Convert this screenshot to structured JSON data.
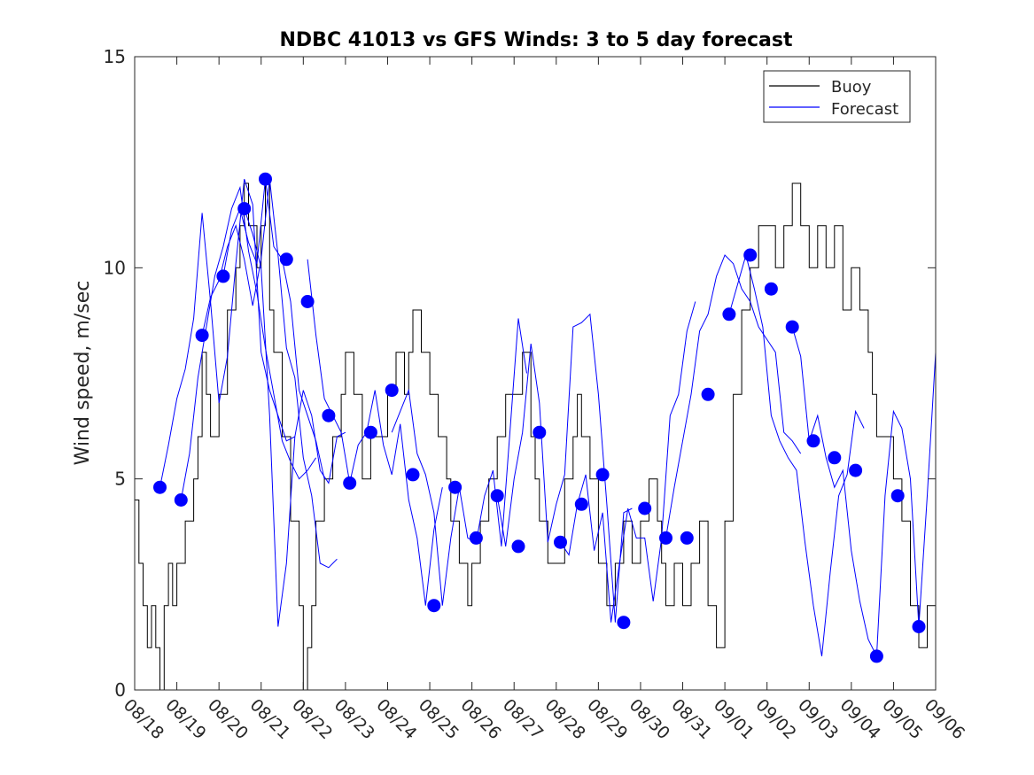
{
  "colors": {
    "buoy": "#000000",
    "forecast": "#0000ff",
    "axis": "#262626",
    "background": "#ffffff"
  },
  "chart_data": {
    "type": "line",
    "title": "NDBC 41013 vs GFS Winds: 3 to 5 day forecast",
    "xlabel": "",
    "ylabel": "Wind speed, m/sec",
    "xlim": [
      0,
      19
    ],
    "ylim": [
      0,
      15
    ],
    "grid": false,
    "legend_position": "top-right",
    "x_tick_labels": [
      "08/18",
      "08/19",
      "08/20",
      "08/21",
      "08/22",
      "08/23",
      "08/24",
      "08/25",
      "08/26",
      "08/27",
      "08/28",
      "08/29",
      "08/30",
      "08/31",
      "09/01",
      "09/02",
      "09/03",
      "09/04",
      "09/05",
      "09/06"
    ],
    "y_ticks": [
      0,
      5,
      10,
      15
    ],
    "legend": {
      "buoy_label": "Buoy",
      "forecast_label": "Forecast"
    },
    "buoy": {
      "name": "Buoy",
      "x": [
        0,
        0.1,
        0.2,
        0.3,
        0.4,
        0.5,
        0.6,
        0.7,
        0.8,
        0.9,
        1.0,
        1.2,
        1.4,
        1.5,
        1.6,
        1.7,
        1.8,
        2.0,
        2.2,
        2.4,
        2.5,
        2.6,
        2.7,
        2.9,
        3.0,
        3.1,
        3.2,
        3.3,
        3.5,
        3.7,
        3.9,
        4.0,
        4.1,
        4.2,
        4.3,
        4.5,
        4.7,
        4.9,
        5.0,
        5.2,
        5.4,
        5.6,
        5.8,
        6.0,
        6.2,
        6.4,
        6.5,
        6.6,
        6.8,
        7.0,
        7.2,
        7.4,
        7.5,
        7.7,
        7.9,
        8.0,
        8.2,
        8.4,
        8.6,
        8.8,
        9.0,
        9.2,
        9.4,
        9.5,
        9.6,
        9.8,
        10.0,
        10.2,
        10.4,
        10.5,
        10.6,
        10.8,
        11.0,
        11.2,
        11.4,
        11.6,
        11.8,
        12.0,
        12.2,
        12.4,
        12.5,
        12.6,
        12.8,
        13.0,
        13.2,
        13.4,
        13.6,
        13.8,
        14.0,
        14.2,
        14.4,
        14.6,
        14.8,
        15.0,
        15.2,
        15.4,
        15.6,
        15.8,
        16.0,
        16.2,
        16.4,
        16.6,
        16.8,
        17.0,
        17.2,
        17.4,
        17.5,
        17.6,
        17.8,
        18.0,
        18.2,
        18.4,
        18.6,
        18.8,
        19.0
      ],
      "values": [
        4.5,
        3,
        2,
        1,
        2,
        1,
        0,
        2,
        3,
        2,
        3,
        4,
        5,
        6,
        8,
        7,
        6,
        7,
        9,
        10,
        11,
        12,
        11,
        10,
        11,
        12,
        9,
        8,
        6,
        4,
        2,
        0,
        1,
        2,
        4,
        5,
        6,
        7,
        8,
        7,
        5,
        6,
        6,
        7,
        8,
        7,
        8,
        9,
        8,
        7,
        6,
        5,
        4,
        3,
        2,
        3,
        4,
        5,
        6,
        7,
        7,
        8,
        6,
        5,
        4,
        3,
        3,
        5,
        6,
        7,
        6,
        5,
        3,
        2,
        3,
        4,
        3,
        4,
        5,
        4,
        3,
        2,
        3,
        2,
        3,
        4,
        2,
        1,
        4,
        7,
        9,
        10,
        11,
        11,
        10,
        11,
        12,
        11,
        10,
        11,
        10,
        11,
        9,
        10,
        9,
        8,
        7,
        6,
        6,
        5,
        4,
        2,
        1,
        2,
        3
      ]
    },
    "forecast_series": [
      {
        "name": "Forecast",
        "x": [
          0.6,
          0.8,
          1.0,
          1.2,
          1.4,
          1.6,
          1.8,
          2.0,
          2.2,
          2.4,
          2.6,
          2.8,
          3.0,
          3.2,
          3.4,
          3.6,
          3.8
        ],
        "values": [
          4.8,
          5.8,
          6.9,
          7.6,
          8.8,
          11.3,
          9.2,
          6.8,
          7.9,
          10.1,
          12.1,
          11.5,
          8.0,
          7.1,
          6.5,
          5.9,
          6.0
        ]
      },
      {
        "name": "Forecast",
        "x": [
          1.1,
          1.3,
          1.5,
          1.7,
          1.9,
          2.1,
          2.3,
          2.5,
          2.7,
          2.9,
          3.1,
          3.3,
          3.5,
          3.7,
          3.9,
          4.1,
          4.3
        ],
        "values": [
          4.5,
          5.6,
          7.4,
          8.6,
          9.8,
          10.5,
          11.4,
          11.9,
          10.4,
          9.4,
          8.1,
          7.0,
          5.9,
          5.4,
          5.0,
          5.2,
          5.5
        ]
      },
      {
        "name": "Forecast",
        "x": [
          1.6,
          1.8,
          2.0,
          2.2,
          2.4,
          2.6,
          2.8,
          3.0,
          3.2,
          3.4,
          3.6,
          3.8,
          4.0,
          4.2,
          4.4,
          4.6,
          4.8
        ],
        "values": [
          8.4,
          9.3,
          9.7,
          10.5,
          11.0,
          10.2,
          9.1,
          10.2,
          12.1,
          10.3,
          8.1,
          7.4,
          5.5,
          4.6,
          3.0,
          2.9,
          3.1
        ]
      },
      {
        "name": "Forecast",
        "x": [
          2.1,
          2.3,
          2.5,
          2.7,
          2.9,
          3.1,
          3.3,
          3.5,
          3.7,
          3.9,
          4.1,
          4.3,
          4.5
        ],
        "values": [
          9.8,
          10.9,
          11.4,
          10.6,
          10.1,
          12.1,
          10.5,
          10.2,
          9.2,
          7.1,
          6.5,
          5.9,
          5.0
        ]
      },
      {
        "name": "Forecast",
        "x": [
          2.6,
          2.8,
          3.0,
          3.2,
          3.4,
          3.6,
          3.8,
          4.0,
          4.2,
          4.4,
          4.6,
          4.8,
          5.0
        ],
        "values": [
          11.4,
          10.8,
          10.0,
          6.5,
          1.5,
          3.0,
          6.0,
          7.1,
          6.5,
          5.2,
          4.9,
          6.0,
          6.1
        ]
      },
      {
        "name": "Forecast",
        "x": [
          4.1,
          4.3,
          4.5,
          4.7,
          4.9,
          5.1,
          5.3,
          5.5,
          5.7,
          5.9,
          6.1,
          6.3,
          6.5,
          6.7,
          6.9,
          7.1,
          7.3
        ],
        "values": [
          10.2,
          8.4,
          6.9,
          6.5,
          6.1,
          4.9,
          5.8,
          6.1,
          7.1,
          5.8,
          5.1,
          6.3,
          4.5,
          3.6,
          2.0,
          3.8,
          4.8
        ]
      },
      {
        "name": "Forecast",
        "x": [
          6.1,
          6.3,
          6.5,
          6.7,
          6.9,
          7.1,
          7.3,
          7.5,
          7.7,
          7.9,
          8.1,
          8.3,
          8.5,
          8.7,
          8.9,
          9.1,
          9.3
        ],
        "values": [
          6.1,
          6.6,
          7.1,
          5.6,
          5.1,
          4.2,
          2.0,
          3.6,
          4.8,
          3.6,
          3.5,
          4.6,
          5.2,
          3.4,
          6.1,
          8.8,
          7.5
        ]
      },
      {
        "name": "Forecast",
        "x": [
          8.6,
          8.8,
          9.0,
          9.2,
          9.4,
          9.6,
          9.8,
          10.0,
          10.2,
          10.4,
          10.6,
          10.8,
          11.0,
          11.2,
          11.4,
          11.6,
          11.8
        ],
        "values": [
          4.6,
          3.4,
          5.0,
          6.1,
          8.2,
          6.8,
          3.5,
          4.4,
          5.1,
          8.6,
          8.7,
          8.9,
          7.0,
          4.4,
          1.6,
          4.2,
          4.3
        ]
      },
      {
        "name": "Forecast",
        "x": [
          10.1,
          10.3,
          10.5,
          10.7,
          10.9,
          11.1,
          11.3,
          11.5,
          11.7,
          11.9,
          12.1,
          12.3,
          12.5,
          12.7,
          12.9,
          13.1,
          13.3
        ],
        "values": [
          3.5,
          3.2,
          4.4,
          5.1,
          3.3,
          4.2,
          1.6,
          3.0,
          4.3,
          3.6,
          3.6,
          2.1,
          3.6,
          6.5,
          7.0,
          8.5,
          9.2
        ]
      },
      {
        "name": "Forecast",
        "x": [
          12.6,
          12.8,
          13.0,
          13.2,
          13.4,
          13.6,
          13.8,
          14.0,
          14.2,
          14.4,
          14.6,
          14.8,
          15.0,
          15.2,
          15.4,
          15.6,
          15.8
        ],
        "values": [
          3.6,
          4.8,
          5.9,
          7.0,
          8.5,
          8.9,
          9.8,
          10.3,
          10.1,
          9.5,
          9.2,
          8.6,
          8.3,
          8.0,
          6.1,
          5.9,
          5.6
        ]
      },
      {
        "name": "Forecast",
        "x": [
          14.1,
          14.3,
          14.5,
          14.7,
          14.9,
          15.1,
          15.3,
          15.5,
          15.7,
          15.9,
          16.1,
          16.3,
          16.5,
          16.7,
          16.9,
          17.1,
          17.3
        ],
        "values": [
          8.9,
          9.6,
          10.3,
          9.5,
          8.6,
          6.5,
          5.9,
          5.5,
          5.2,
          3.5,
          2.0,
          0.8,
          2.8,
          4.6,
          5.1,
          6.6,
          6.2
        ]
      },
      {
        "name": "Forecast",
        "x": [
          15.6,
          15.8,
          16.0,
          16.2,
          16.4,
          16.6,
          16.8,
          17.0,
          17.2,
          17.4,
          17.6,
          17.8,
          18.0,
          18.2,
          18.4,
          18.6,
          18.8,
          19.0
        ],
        "values": [
          8.6,
          7.9,
          5.9,
          6.5,
          5.5,
          4.8,
          5.2,
          3.3,
          2.1,
          1.2,
          0.8,
          4.6,
          6.6,
          6.2,
          5.0,
          1.5,
          4.6,
          8.0
        ]
      }
    ],
    "forecast_points": {
      "x": [
        0.6,
        1.1,
        1.6,
        2.1,
        2.6,
        3.1,
        3.6,
        4.1,
        4.6,
        5.1,
        5.6,
        6.1,
        6.6,
        7.1,
        7.6,
        8.1,
        8.6,
        9.1,
        9.6,
        10.1,
        10.6,
        11.1,
        11.6,
        12.1,
        12.6,
        13.1,
        13.6,
        14.1,
        14.6,
        15.1,
        15.6,
        16.1,
        16.6,
        17.1,
        17.6,
        18.1,
        18.6
      ],
      "values": [
        4.8,
        4.5,
        8.4,
        9.8,
        11.4,
        12.1,
        10.2,
        9.2,
        6.5,
        4.9,
        6.1,
        7.1,
        5.1,
        2.0,
        4.8,
        3.6,
        4.6,
        3.4,
        6.1,
        3.5,
        4.4,
        5.1,
        1.6,
        4.3,
        3.6,
        3.6,
        7.0,
        8.9,
        10.3,
        9.5,
        8.6,
        5.9,
        5.5,
        5.2,
        0.8,
        4.6,
        1.5
      ]
    }
  }
}
